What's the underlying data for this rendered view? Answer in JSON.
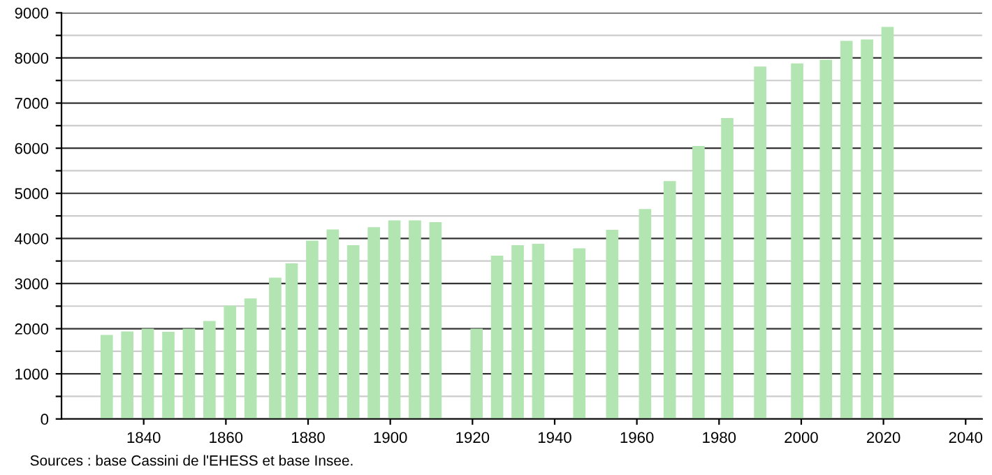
{
  "chart_data": {
    "type": "bar",
    "x": [
      1831,
      1836,
      1841,
      1846,
      1851,
      1856,
      1861,
      1866,
      1872,
      1876,
      1881,
      1886,
      1891,
      1896,
      1901,
      1906,
      1911,
      1921,
      1926,
      1931,
      1936,
      1946,
      1954,
      1962,
      1968,
      1975,
      1982,
      1990,
      1999,
      2006,
      2011,
      2016,
      2021
    ],
    "values": [
      1860,
      1940,
      2000,
      1930,
      2000,
      2170,
      2510,
      2670,
      3130,
      3450,
      3950,
      4200,
      3850,
      4250,
      4400,
      4400,
      4360,
      2000,
      3620,
      3850,
      3880,
      3780,
      4190,
      4650,
      5270,
      6050,
      6670,
      7810,
      7880,
      7960,
      8380,
      8410,
      8690
    ],
    "color": "#b2e5b2",
    "xlim": [
      1820,
      2044
    ],
    "xticks": [
      1840,
      1860,
      1880,
      1900,
      1920,
      1940,
      1960,
      1980,
      2000,
      2020,
      2040
    ],
    "ylim": [
      0,
      9000
    ],
    "yticks": [
      0,
      {
        "value": 500,
        "label": null
      },
      1000,
      {
        "value": 1500,
        "label": null
      },
      2000,
      {
        "value": 2500,
        "label": null
      },
      3000,
      {
        "value": 3500,
        "label": null
      },
      4000,
      {
        "value": 4500,
        "label": null
      },
      5000,
      {
        "value": 5500,
        "label": null
      },
      6000,
      {
        "value": 6500,
        "label": null
      },
      7000,
      {
        "value": 7500,
        "label": null
      },
      8000,
      {
        "value": 8500,
        "label": null
      },
      9000
    ],
    "grid": "y",
    "annotations": [
      "Sources : base Cassini de l'EHESS et base Insee."
    ]
  }
}
